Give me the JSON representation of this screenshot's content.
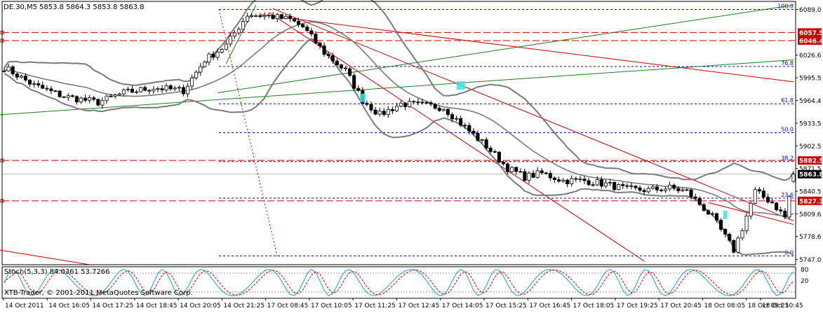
{
  "header": {
    "symbol_label": "DE.30,M5",
    "ohlc_label": "5853.8 5864.3 5853.8 5863.8"
  },
  "subwindow": {
    "label": "Stoch(5,3,3) 84.0361 53.7266",
    "level_high": "80",
    "level_low": "20",
    "copyright": "XTB-Trader, © 2001-2011 MetaQuotes Software Corp."
  },
  "price_axis": {
    "ticks": [
      "6089.0",
      "6026.6",
      "5995.5",
      "5964.4",
      "5933.5",
      "5902.5",
      "5871.5",
      "5840.5",
      "5809.6",
      "5778.6",
      "5747.0"
    ]
  },
  "price_tags": [
    {
      "text": "6057.5",
      "kind": "level"
    },
    {
      "text": "6046.4",
      "kind": "level"
    },
    {
      "text": "5882.5",
      "kind": "level"
    },
    {
      "text": "5863.8",
      "kind": "current"
    },
    {
      "text": "5827.3",
      "kind": "level"
    }
  ],
  "fibo_labels": [
    "100.0",
    "76.8",
    "61.8",
    "50.0",
    "38.2",
    "23.6",
    "0.0"
  ],
  "time_axis": {
    "labels": [
      "14 Oct 2011",
      "14 Oct 16:05",
      "14 Oct 17:25",
      "14 Oct 18:45",
      "14 Oct 20:05",
      "14 Oct 21:25",
      "17 Oct 08:45",
      "17 Oct 10:05",
      "17 Oct 11:25",
      "17 Oct 12:45",
      "17 Oct 14:05",
      "17 Oct 15:25",
      "17 Oct 16:45",
      "17 Oct 18:05",
      "17 Oct 19:25",
      "17 Oct 20:45",
      "18 Oct 08:05",
      "18 Oct 09:25",
      "18 Oct 10:45"
    ]
  },
  "colors": {
    "background": "#ffffff",
    "candle": "#000000",
    "bollinger": "#7a7a7a",
    "fibo": "#0000cc",
    "horizontal_level": "#cc0000",
    "trendline_red": "#cc0000",
    "trendline_green": "#1f7a1f",
    "marker": "#3ee0e0",
    "stoch_main": "#1f9fbf",
    "stoch_signal": "#cc0000",
    "current_tag": "#000000"
  },
  "chart_data": {
    "type": "candlestick",
    "instrument": "DE.30",
    "timeframe": "M5",
    "last_bar": {
      "open": 5853.8,
      "high": 5864.3,
      "low": 5853.8,
      "close": 5863.8
    },
    "y_range": [
      5740,
      6100
    ],
    "horizontal_levels": [
      6057.5,
      6046.4,
      5882.5,
      5827.3
    ],
    "current_price": 5863.8,
    "fibonacci": [
      {
        "level": "100.0",
        "price": 6089.0
      },
      {
        "level": "76.8",
        "price": 6011.0
      },
      {
        "level": "61.8",
        "price": 5960.0
      },
      {
        "level": "50.0",
        "price": 5920.5
      },
      {
        "level": "38.2",
        "price": 5881.0
      },
      {
        "level": "23.6",
        "price": 5831.0
      },
      {
        "level": "0.0",
        "price": 5752.0
      }
    ],
    "price_path": [
      [
        0,
        6010
      ],
      [
        7,
        5985
      ],
      [
        14,
        5970
      ],
      [
        22,
        5962
      ],
      [
        28,
        5975
      ],
      [
        35,
        5982
      ],
      [
        42,
        5978
      ],
      [
        47,
        6020
      ],
      [
        52,
        6040
      ],
      [
        57,
        6082
      ],
      [
        62,
        6080
      ],
      [
        67,
        6075
      ],
      [
        70,
        6065
      ],
      [
        75,
        6030
      ],
      [
        80,
        6005
      ],
      [
        84,
        5965
      ],
      [
        88,
        5945
      ],
      [
        93,
        5960
      ],
      [
        98,
        5958
      ],
      [
        103,
        5955
      ],
      [
        108,
        5928
      ],
      [
        113,
        5902
      ],
      [
        118,
        5872
      ],
      [
        122,
        5860
      ],
      [
        126,
        5865
      ],
      [
        131,
        5855
      ],
      [
        136,
        5855
      ],
      [
        141,
        5850
      ],
      [
        146,
        5843
      ],
      [
        151,
        5842
      ],
      [
        156,
        5845
      ],
      [
        160,
        5840
      ],
      [
        163,
        5823
      ],
      [
        166,
        5805
      ],
      [
        169,
        5778
      ],
      [
        171,
        5760
      ],
      [
        173,
        5790
      ],
      [
        176,
        5840
      ],
      [
        180,
        5825
      ],
      [
        183,
        5805
      ],
      [
        185,
        5860
      ]
    ],
    "bars_count": 186,
    "stochastic": {
      "k_period": 5,
      "d_period": 3,
      "slowing": 3,
      "main": 84.0361,
      "signal": 53.7266,
      "levels": [
        80,
        20
      ],
      "range": [
        0,
        100
      ]
    }
  }
}
